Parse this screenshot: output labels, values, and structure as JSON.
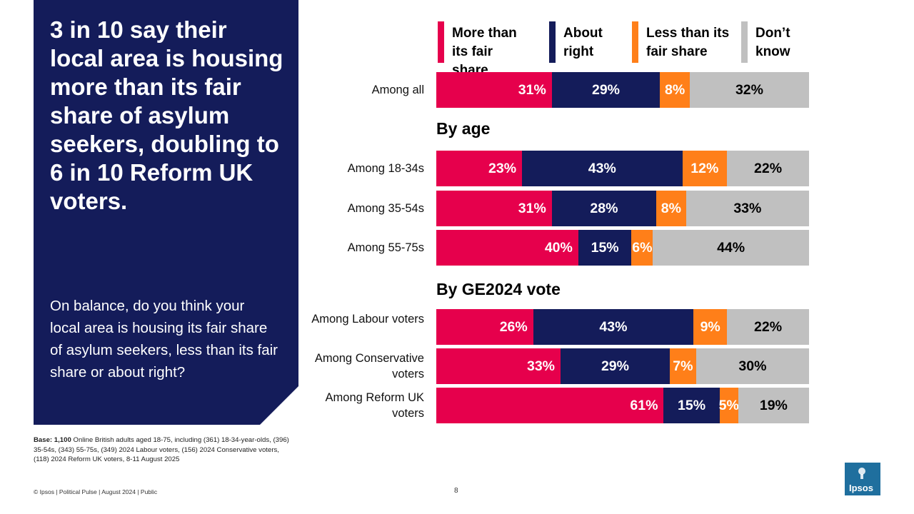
{
  "headline": "3 in 10 say their local area is housing more than its fair share of asylum seekers, doubling to 6 in 10 Reform UK voters.",
  "question": "On balance, do you think your local area is housing its fair share of asylum seekers, less than its fair share or about right?",
  "base": {
    "bold": "Base: 1,100",
    "text": "Online British adults aged 18-75, including (361) 18-34-year-olds, (396) 35-54s, (343) 55-75s, (349) 2024 Labour voters, (156) 2024 Conservative voters, (118) 2024 Reform UK voters, 8-11 August 2025"
  },
  "footer": "© Ipsos | Political Pulse | August 2024 | Public",
  "page_number": "8",
  "logo_text": "Ipsos",
  "colors": {
    "panel": "#141c5a",
    "more": "#e6004c",
    "about": "#141c5a",
    "less": "#ff7f19",
    "dont_know": "#c0c0c0",
    "logo": "#1f6f9e"
  },
  "chart_data": {
    "type": "bar",
    "orientation": "horizontal",
    "stacked": true,
    "value_suffix": "%",
    "legend": [
      {
        "key": "more",
        "label": "More than its fair share"
      },
      {
        "key": "about",
        "label": "About right"
      },
      {
        "key": "less",
        "label": "Less than its fair share"
      },
      {
        "key": "dk",
        "label": "Don’t know"
      }
    ],
    "sections": [
      {
        "heading": "",
        "rows": [
          {
            "label": "Among all",
            "values": [
              31,
              29,
              8,
              32
            ]
          }
        ]
      },
      {
        "heading": "By age",
        "rows": [
          {
            "label": "Among 18-34s",
            "values": [
              23,
              43,
              12,
              22
            ]
          },
          {
            "label": "Among 35-54s",
            "values": [
              31,
              28,
              8,
              33
            ]
          },
          {
            "label": "Among 55-75s",
            "values": [
              40,
              15,
              6,
              44
            ]
          }
        ]
      },
      {
        "heading": "By GE2024 vote",
        "rows": [
          {
            "label": "Among Labour voters",
            "values": [
              26,
              43,
              9,
              22
            ]
          },
          {
            "label": "Among Conservative voters",
            "values": [
              33,
              29,
              7,
              30
            ]
          },
          {
            "label": "Among Reform UK voters",
            "values": [
              61,
              15,
              5,
              19
            ]
          }
        ]
      }
    ]
  }
}
